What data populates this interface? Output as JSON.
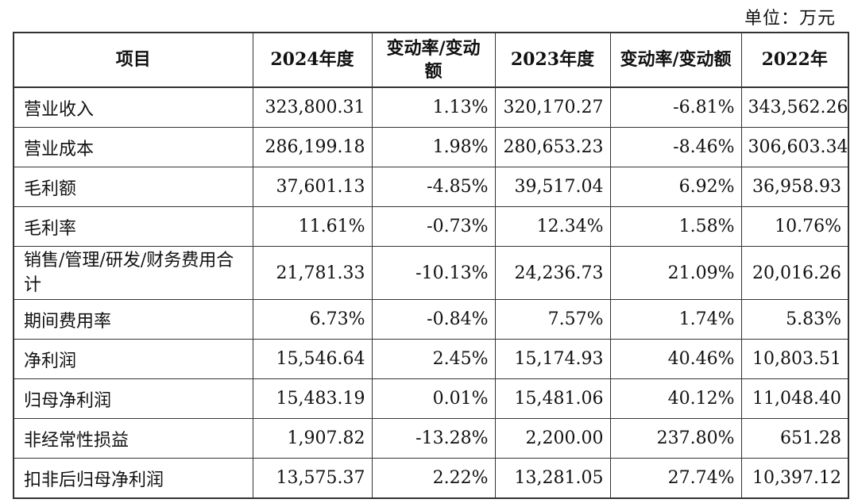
{
  "unit": "单位：万元",
  "headers": [
    "项目",
    "2024年度",
    "变动率/变动额",
    "2023年度",
    "变动率/变动额",
    "2022年"
  ],
  "rows": [
    [
      "营业收入",
      "323,800.31",
      "1.13%",
      "320,170.27",
      "-6.81%",
      "343,562.26"
    ],
    [
      "营业成本",
      "286,199.18",
      "1.98%",
      "280,653.23",
      "-8.46%",
      "306,603.34"
    ],
    [
      "毛利额",
      "37,601.13",
      "-4.85%",
      "39,517.04",
      "6.92%",
      "36,958.93"
    ],
    [
      "毛利率",
      "11.61%",
      "-0.73%",
      "12.34%",
      "1.58%",
      "10.76%"
    ],
    [
      "销售/管理/研发/财务费用合计",
      "21,781.33",
      "-10.13%",
      "24,236.73",
      "21.09%",
      "20,016.26"
    ],
    [
      "期间费用率",
      "6.73%",
      "-0.84%",
      "7.57%",
      "1.74%",
      "5.83%"
    ],
    [
      "净利润",
      "15,546.64",
      "2.45%",
      "15,174.93",
      "40.46%",
      "10,803.51"
    ],
    [
      "归母净利润",
      "15,483.19",
      "0.01%",
      "15,481.06",
      "40.12%",
      "11,048.40"
    ],
    [
      "非经常性损益",
      "1,907.82",
      "-13.28%",
      "2,200.00",
      "237.80%",
      "651.28"
    ],
    [
      "扣非后归母净利润",
      "13,575.37",
      "2.22%",
      "13,281.05",
      "27.74%",
      "10,397.12"
    ]
  ]
}
